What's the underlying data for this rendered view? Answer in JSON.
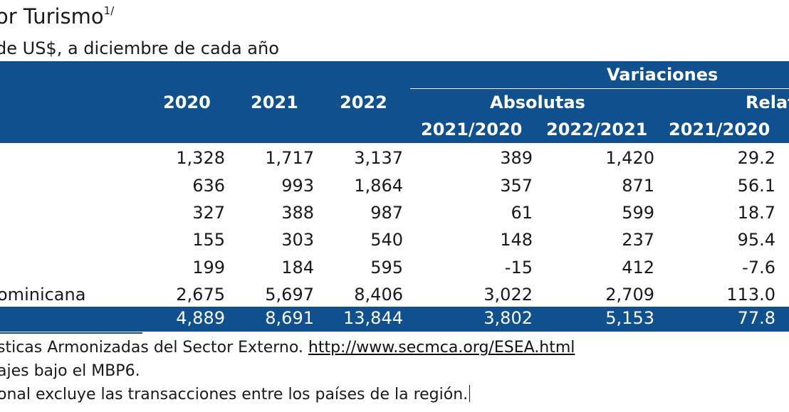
{
  "title": "or Turismo",
  "title_sup": "1/",
  "subtitle": "de US$, a diciembre de cada año",
  "header": {
    "variaciones": "Variaciones",
    "years": [
      "2020",
      "2021",
      "2022"
    ],
    "absolutas": "Absolutas",
    "relativas": "Relat",
    "periods": [
      "2021/2020",
      "2022/2021",
      "2021/2020"
    ]
  },
  "rows": [
    {
      "label": "",
      "values": [
        "1,328",
        "1,717",
        "3,137",
        "389",
        "1,420",
        "29.2"
      ]
    },
    {
      "label": "",
      "values": [
        "636",
        "993",
        "1,864",
        "357",
        "871",
        "56.1"
      ]
    },
    {
      "label": "",
      "values": [
        "327",
        "388",
        "987",
        "61",
        "599",
        "18.7"
      ]
    },
    {
      "label": "",
      "values": [
        "155",
        "303",
        "540",
        "148",
        "237",
        "95.4"
      ]
    },
    {
      "label": "",
      "values": [
        "199",
        "184",
        "595",
        "-15",
        "412",
        "-7.6"
      ]
    },
    {
      "label": "ominicana",
      "values": [
        "2,675",
        "5,697",
        "8,406",
        "3,022",
        "2,709",
        "113.0"
      ]
    }
  ],
  "total": {
    "label": "",
    "values": [
      "4,889",
      "8,691",
      "13,844",
      "3,802",
      "5,153",
      "77.8"
    ]
  },
  "notes": {
    "source_prefix": "sticas Armonizadas del Sector Externo. ",
    "source_link": "http://www.secmca.org/ESEA.html",
    "note1": "ajes bajo el MBP6.",
    "note2": "onal excluye las transacciones entre los países de la región."
  },
  "colors": {
    "header_bg": "#10508e",
    "header_text": "#ffffff"
  }
}
